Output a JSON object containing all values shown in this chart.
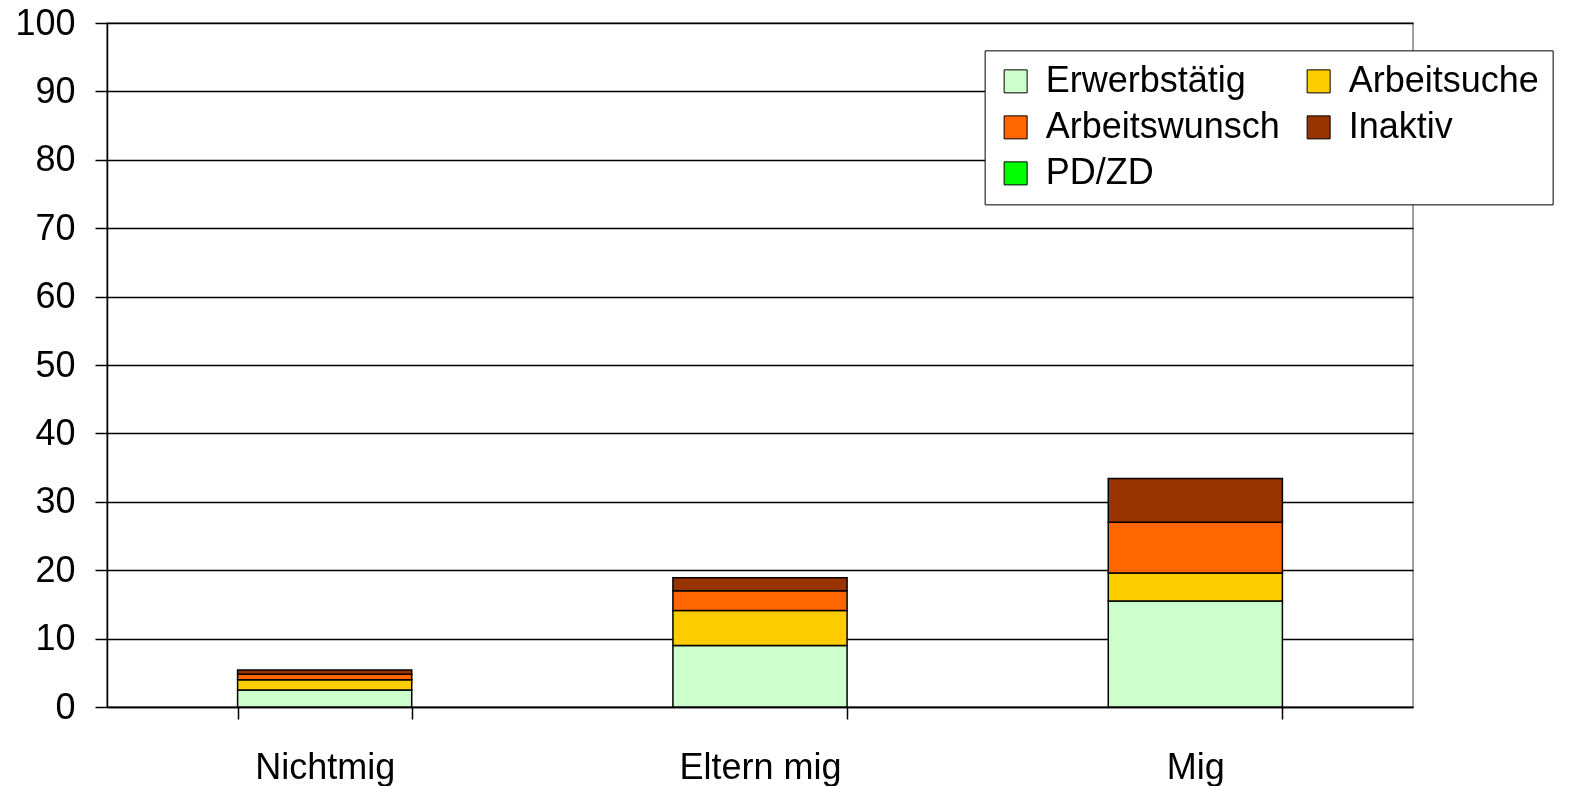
{
  "chart_data": {
    "type": "bar",
    "stacked": true,
    "categories": [
      "Nichtmig",
      "Eltern mig",
      "Mig"
    ],
    "series": [
      {
        "name": "Erwerbstätig",
        "color": "#ccffcc",
        "values": [
          2.5,
          9.0,
          15.5
        ]
      },
      {
        "name": "Arbeitsuche",
        "color": "#ffcc00",
        "values": [
          1.5,
          5.1,
          4.1
        ]
      },
      {
        "name": "Arbeitswunsch",
        "color": "#ff6600",
        "values": [
          0.8,
          2.9,
          7.4
        ]
      },
      {
        "name": "Inaktiv",
        "color": "#993300",
        "values": [
          0.6,
          1.9,
          6.4
        ]
      },
      {
        "name": "PD/ZD",
        "color": "#00ff00",
        "values": [
          null,
          null,
          null
        ]
      }
    ],
    "ylim": [
      0,
      100
    ],
    "yticks": [
      0,
      10,
      20,
      30,
      40,
      50,
      60,
      70,
      80,
      90,
      100
    ],
    "grid": "y",
    "legend": "top right"
  }
}
